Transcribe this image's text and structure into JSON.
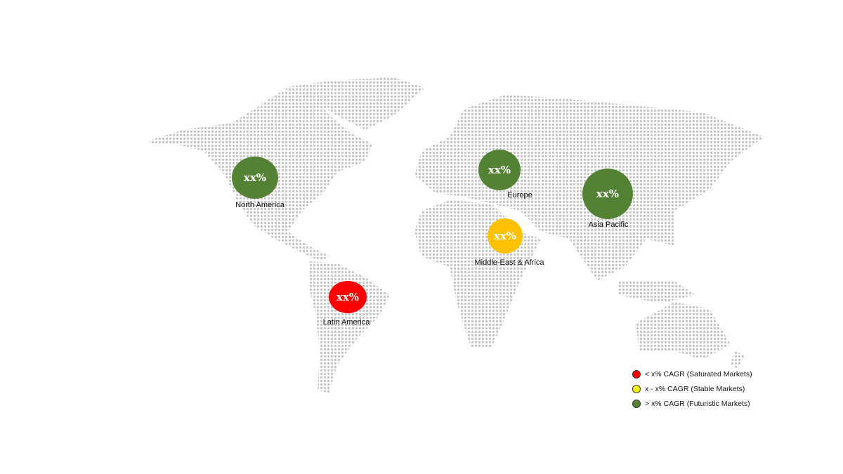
{
  "regions": [
    {
      "name": "North America",
      "value_label": "xx%",
      "color": "#548235"
    },
    {
      "name": "Europe",
      "value_label": "xx%",
      "color": "#548235"
    },
    {
      "name": "Asia Pacific",
      "value_label": "xx%",
      "color": "#548235"
    },
    {
      "name": "Middle-East & Africa",
      "value_label": "xx%",
      "color": "#FFC000"
    },
    {
      "name": "Latin America",
      "value_label": "xx%",
      "color": "#FF0000"
    }
  ],
  "legend": [
    {
      "label": "< x% CAGR (Saturated Markets)",
      "color": "#FF0000"
    },
    {
      "label": "x - x% CAGR (Stable Markets)",
      "color": "#FFFF00"
    },
    {
      "label": "> x% CAGR (Futuristic Markets)",
      "color": "#548235"
    }
  ],
  "map_dot_color": "#c6c6c6"
}
